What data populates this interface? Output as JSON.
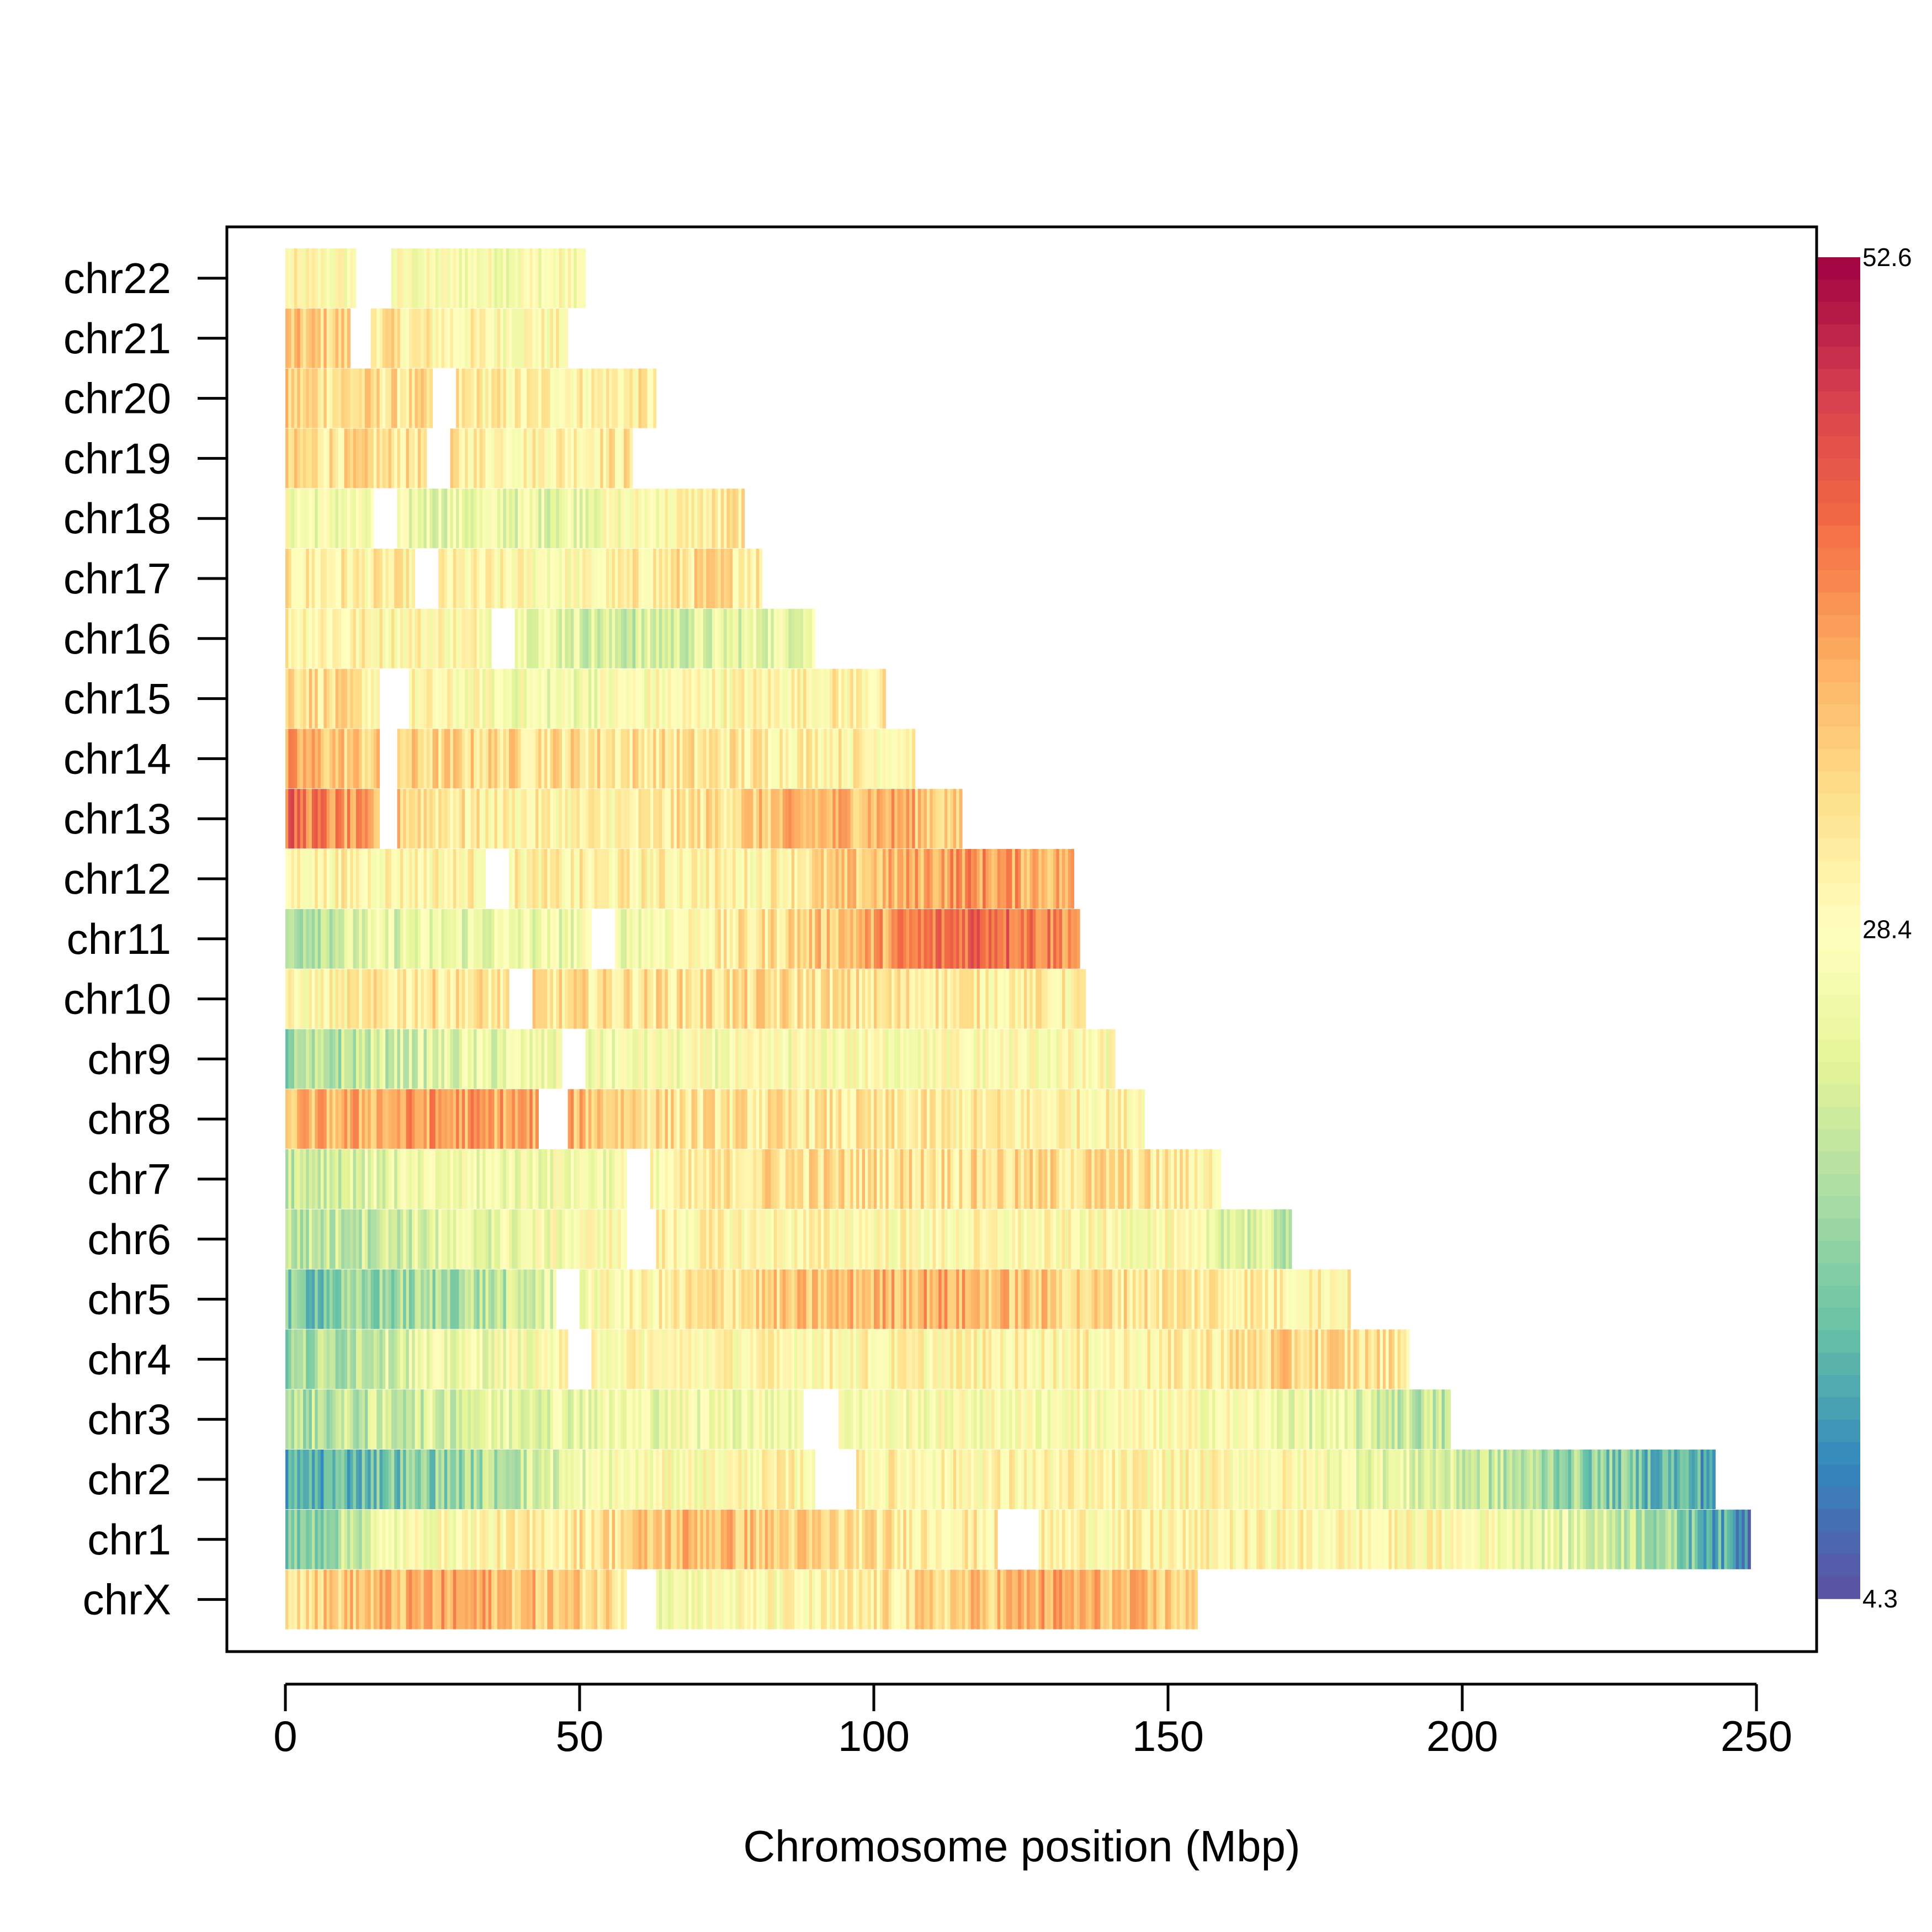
{
  "chart_data": {
    "type": "heatmap",
    "title": "",
    "xlabel": "Chromosome position (Mbp)",
    "ylabel": "",
    "xlim": [
      0,
      260
    ],
    "x_ticks": [
      0,
      50,
      100,
      150,
      200,
      250
    ],
    "x_tick_labels": [
      "0",
      "50",
      "100",
      "150",
      "200",
      "250"
    ],
    "colorbar": {
      "min": 4.3,
      "mid": 28.4,
      "max": 52.6,
      "labels": [
        "52.6",
        "28.4",
        "4.3"
      ],
      "palette": [
        "#5E4FA2",
        "#3288BD",
        "#66C2A5",
        "#ABDDA4",
        "#E6F598",
        "#FFFFBF",
        "#FEE08B",
        "#FDAE61",
        "#F46D43",
        "#D53E4F",
        "#9E0142"
      ]
    },
    "bin_size_mbp": 0.5,
    "chromosomes": [
      {
        "name": "chr22",
        "length": 51,
        "gaps": [
          [
            12,
            18
          ]
        ],
        "profile": [
          [
            0,
            29
          ],
          [
            12,
            28
          ],
          [
            25,
            27
          ],
          [
            51,
            28
          ]
        ]
      },
      {
        "name": "chr21",
        "length": 48,
        "gaps": [
          [
            11,
            14.5
          ]
        ],
        "profile": [
          [
            0,
            35
          ],
          [
            11,
            34
          ],
          [
            20,
            31
          ],
          [
            35,
            29
          ],
          [
            48,
            29
          ]
        ]
      },
      {
        "name": "chr20",
        "length": 63,
        "gaps": [
          [
            25,
            29
          ]
        ],
        "profile": [
          [
            0,
            34
          ],
          [
            25,
            32
          ],
          [
            40,
            30
          ],
          [
            63,
            31
          ]
        ]
      },
      {
        "name": "chr19",
        "length": 59,
        "gaps": [
          [
            24,
            28
          ]
        ],
        "profile": [
          [
            0,
            33
          ],
          [
            24,
            32
          ],
          [
            40,
            30
          ],
          [
            59,
            32
          ]
        ]
      },
      {
        "name": "chr18",
        "length": 78,
        "gaps": [
          [
            15,
            19
          ]
        ],
        "profile": [
          [
            0,
            27
          ],
          [
            20,
            25
          ],
          [
            45,
            25
          ],
          [
            65,
            29
          ],
          [
            78,
            32
          ]
        ]
      },
      {
        "name": "chr17",
        "length": 81,
        "gaps": [
          [
            22,
            26
          ]
        ],
        "profile": [
          [
            0,
            31
          ],
          [
            22,
            30
          ],
          [
            50,
            28
          ],
          [
            70,
            33
          ],
          [
            81,
            32
          ]
        ]
      },
      {
        "name": "chr16",
        "length": 90,
        "gaps": [
          [
            35,
            39
          ]
        ],
        "profile": [
          [
            0,
            31
          ],
          [
            35,
            29
          ],
          [
            55,
            22
          ],
          [
            70,
            23
          ],
          [
            90,
            26
          ]
        ]
      },
      {
        "name": "chr15",
        "length": 102,
        "gaps": [
          [
            16,
            21
          ]
        ],
        "profile": [
          [
            0,
            35
          ],
          [
            16,
            30
          ],
          [
            45,
            26
          ],
          [
            70,
            29
          ],
          [
            102,
            31
          ]
        ]
      },
      {
        "name": "chr14",
        "length": 107,
        "gaps": [
          [
            16,
            19
          ]
        ],
        "profile": [
          [
            0,
            38
          ],
          [
            16,
            34
          ],
          [
            50,
            33
          ],
          [
            107,
            30
          ]
        ]
      },
      {
        "name": "chr13",
        "length": 115,
        "gaps": [
          [
            16,
            19
          ]
        ],
        "profile": [
          [
            0,
            44
          ],
          [
            16,
            36
          ],
          [
            35,
            30
          ],
          [
            60,
            30
          ],
          [
            85,
            36
          ],
          [
            105,
            38
          ],
          [
            115,
            33
          ]
        ]
      },
      {
        "name": "chr12",
        "length": 134,
        "gaps": [
          [
            34,
            38
          ]
        ],
        "profile": [
          [
            0,
            30
          ],
          [
            34,
            30
          ],
          [
            80,
            30
          ],
          [
            115,
            40
          ],
          [
            134,
            37
          ]
        ]
      },
      {
        "name": "chr11",
        "length": 135,
        "gaps": [
          [
            52,
            56
          ]
        ],
        "profile": [
          [
            0,
            20
          ],
          [
            15,
            24
          ],
          [
            56,
            26
          ],
          [
            80,
            32
          ],
          [
            100,
            38
          ],
          [
            118,
            45
          ],
          [
            135,
            40
          ]
        ]
      },
      {
        "name": "chr10",
        "length": 136,
        "gaps": [
          [
            38,
            42
          ]
        ],
        "profile": [
          [
            0,
            28
          ],
          [
            20,
            32
          ],
          [
            38,
            32
          ],
          [
            80,
            33
          ],
          [
            136,
            30
          ]
        ]
      },
      {
        "name": "chr9",
        "length": 141,
        "gaps": [
          [
            47,
            51
          ]
        ],
        "profile": [
          [
            0,
            17
          ],
          [
            15,
            22
          ],
          [
            47,
            26
          ],
          [
            100,
            28
          ],
          [
            141,
            28
          ]
        ]
      },
      {
        "name": "chr8",
        "length": 146,
        "gaps": [
          [
            43,
            48
          ]
        ],
        "profile": [
          [
            0,
            36
          ],
          [
            25,
            39
          ],
          [
            43,
            38
          ],
          [
            70,
            32
          ],
          [
            146,
            30
          ]
        ]
      },
      {
        "name": "chr7",
        "length": 159,
        "gaps": [
          [
            58,
            62
          ]
        ],
        "profile": [
          [
            0,
            22
          ],
          [
            30,
            26
          ],
          [
            58,
            27
          ],
          [
            80,
            33
          ],
          [
            140,
            33
          ],
          [
            159,
            30
          ]
        ]
      },
      {
        "name": "chr6",
        "length": 171,
        "gaps": [
          [
            58,
            63
          ]
        ],
        "profile": [
          [
            0,
            20
          ],
          [
            30,
            24
          ],
          [
            63,
            30
          ],
          [
            150,
            28
          ],
          [
            171,
            21
          ]
        ]
      },
      {
        "name": "chr5",
        "length": 181,
        "gaps": [
          [
            46,
            50
          ]
        ],
        "profile": [
          [
            0,
            15
          ],
          [
            40,
            21
          ],
          [
            50,
            27
          ],
          [
            80,
            34
          ],
          [
            110,
            38
          ],
          [
            140,
            33
          ],
          [
            181,
            30
          ]
        ]
      },
      {
        "name": "chr4",
        "length": 191,
        "gaps": [
          [
            48,
            52
          ]
        ],
        "profile": [
          [
            0,
            17
          ],
          [
            20,
            24
          ],
          [
            52,
            29
          ],
          [
            150,
            30
          ],
          [
            170,
            34
          ],
          [
            191,
            32
          ]
        ]
      },
      {
        "name": "chr3",
        "length": 198,
        "gaps": [
          [
            88,
            94
          ]
        ],
        "profile": [
          [
            0,
            19
          ],
          [
            40,
            25
          ],
          [
            88,
            27
          ],
          [
            160,
            28
          ],
          [
            198,
            20
          ]
        ]
      },
      {
        "name": "chr2",
        "length": 243,
        "gaps": [
          [
            90,
            97
          ]
        ],
        "profile": [
          [
            0,
            12
          ],
          [
            30,
            18
          ],
          [
            55,
            27
          ],
          [
            90,
            30
          ],
          [
            170,
            29
          ],
          [
            200,
            22
          ],
          [
            243,
            12
          ]
        ]
      },
      {
        "name": "chr1",
        "length": 249,
        "gaps": [
          [
            121,
            128
          ]
        ],
        "profile": [
          [
            0,
            14
          ],
          [
            20,
            27
          ],
          [
            50,
            32
          ],
          [
            70,
            37
          ],
          [
            100,
            32
          ],
          [
            128,
            30
          ],
          [
            200,
            29
          ],
          [
            230,
            21
          ],
          [
            249,
            9
          ]
        ]
      },
      {
        "name": "chrX",
        "length": 155,
        "gaps": [
          [
            58,
            63
          ]
        ],
        "profile": [
          [
            0,
            34
          ],
          [
            30,
            38
          ],
          [
            58,
            33
          ],
          [
            63,
            27
          ],
          [
            90,
            29
          ],
          [
            130,
            38
          ],
          [
            155,
            34
          ]
        ]
      }
    ]
  }
}
